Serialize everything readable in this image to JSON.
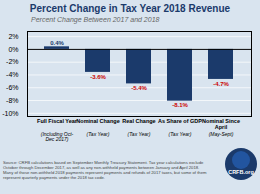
{
  "chart_data": {
    "type": "bar",
    "title": "Percent Change in Tax Year 2018 Revenue",
    "subtitle": "Percent Change Between 2017 and 2018",
    "categories": [
      "Full Fiscal Year",
      "Nominal Change",
      "Real Change",
      "As Share of GDP",
      "Nominal Since\nApril"
    ],
    "subcategories": [
      "(Including Oct-Dec 2017)",
      "(Tax Year)",
      "(Tax Year)",
      "(Tax Year)",
      "(May-Sept)"
    ],
    "values": [
      0.4,
      -3.6,
      -5.4,
      -8.1,
      -4.7
    ],
    "value_labels": [
      "0.4%",
      "-3.6%",
      "-5.4%",
      "-8.1%",
      "-4.7%"
    ],
    "data_labels": true,
    "color": "#1b3a6b",
    "value_label_colors": [
      "#1b3a6b",
      "#cc0000",
      "#cc0000",
      "#cc0000",
      "#cc0000"
    ],
    "ylim": [
      -10.5,
      2.8
    ],
    "yticks": [
      {
        "value": 2,
        "label": "2%"
      },
      {
        "value": 0,
        "label": "0%"
      },
      {
        "value": -2,
        "label": "-2%"
      },
      {
        "value": -4,
        "label": "-4%"
      },
      {
        "value": -6,
        "label": "-6%"
      },
      {
        "value": -8,
        "label": "-8%"
      },
      {
        "value": -10,
        "label": "-10%"
      }
    ],
    "grid": true,
    "source": "Source: CRFB calculations based on September Monthly Treasury Statement. Tax year calculations exclude\nOctober through December 2017, as well as any non-withheld payments between January and April 2018.\nMany of those non-withheld 2018 payments represent payments and refunds of 2017 taxes, but some of them\nrepresent quarterly payments under the 2018 tax code.",
    "annotations": [
      "CRFB.org"
    ],
    "background_color": "#d9e4ef",
    "title_color": "#1b3a6b",
    "subtitle_color": "#666666",
    "badge_colors": [
      "#1b3a6b",
      "#2255a0"
    ]
  }
}
